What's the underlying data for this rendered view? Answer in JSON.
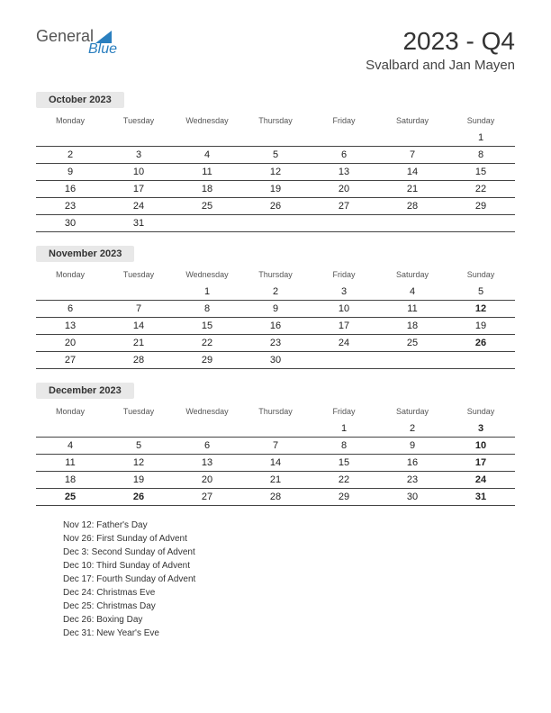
{
  "logo": {
    "general": "General",
    "blue": "Blue"
  },
  "title": "2023 - Q4",
  "subtitle": "Svalbard and Jan Mayen",
  "colors": {
    "holiday": "#c00000",
    "month_bg": "#e8e8e8",
    "border": "#444444",
    "logo_blue": "#2a7fbf",
    "logo_gray": "#555555"
  },
  "day_headers": [
    "Monday",
    "Tuesday",
    "Wednesday",
    "Thursday",
    "Friday",
    "Saturday",
    "Sunday"
  ],
  "months": [
    {
      "name": "October 2023",
      "weeks": [
        [
          "",
          "",
          "",
          "",
          "",
          "",
          "1"
        ],
        [
          "2",
          "3",
          "4",
          "5",
          "6",
          "7",
          "8"
        ],
        [
          "9",
          "10",
          "11",
          "12",
          "13",
          "14",
          "15"
        ],
        [
          "16",
          "17",
          "18",
          "19",
          "20",
          "21",
          "22"
        ],
        [
          "23",
          "24",
          "25",
          "26",
          "27",
          "28",
          "29"
        ],
        [
          "30",
          "31",
          "",
          "",
          "",
          "",
          ""
        ]
      ],
      "holidays": []
    },
    {
      "name": "November 2023",
      "weeks": [
        [
          "",
          "",
          "1",
          "2",
          "3",
          "4",
          "5"
        ],
        [
          "6",
          "7",
          "8",
          "9",
          "10",
          "11",
          "12"
        ],
        [
          "13",
          "14",
          "15",
          "16",
          "17",
          "18",
          "19"
        ],
        [
          "20",
          "21",
          "22",
          "23",
          "24",
          "25",
          "26"
        ],
        [
          "27",
          "28",
          "29",
          "30",
          "",
          "",
          ""
        ]
      ],
      "holidays": [
        "12",
        "26"
      ]
    },
    {
      "name": "December 2023",
      "weeks": [
        [
          "",
          "",
          "",
          "",
          "1",
          "2",
          "3"
        ],
        [
          "4",
          "5",
          "6",
          "7",
          "8",
          "9",
          "10"
        ],
        [
          "11",
          "12",
          "13",
          "14",
          "15",
          "16",
          "17"
        ],
        [
          "18",
          "19",
          "20",
          "21",
          "22",
          "23",
          "24"
        ],
        [
          "25",
          "26",
          "27",
          "28",
          "29",
          "30",
          "31"
        ]
      ],
      "holidays": [
        "3",
        "10",
        "17",
        "24",
        "25",
        "26",
        "31"
      ]
    }
  ],
  "holiday_list": [
    "Nov 12: Father's Day",
    "Nov 26: First Sunday of Advent",
    "Dec 3: Second Sunday of Advent",
    "Dec 10: Third Sunday of Advent",
    "Dec 17: Fourth Sunday of Advent",
    "Dec 24: Christmas Eve",
    "Dec 25: Christmas Day",
    "Dec 26: Boxing Day",
    "Dec 31: New Year's Eve"
  ]
}
